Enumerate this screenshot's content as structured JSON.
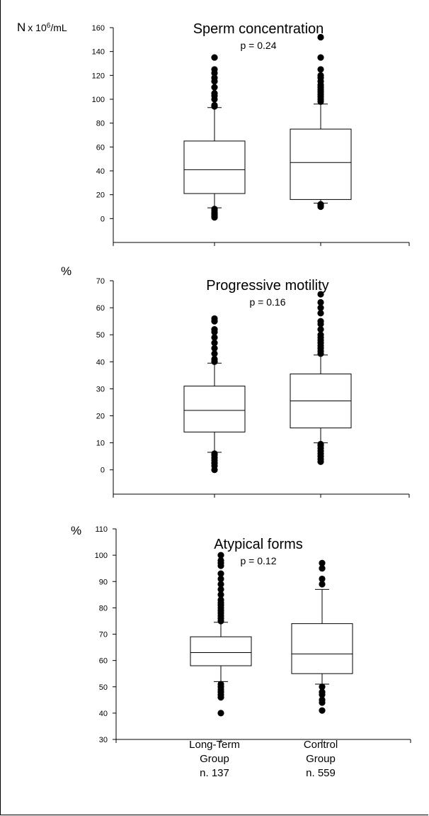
{
  "group_labels": [
    {
      "line1": "Long-Term",
      "line2": "Group",
      "line3": "n. 137"
    },
    {
      "line1": "Control",
      "line2": "Group",
      "line3": "n. 559"
    }
  ],
  "chart_data": [
    {
      "type": "box",
      "title": "Sperm concentration",
      "subtitle": "p = 0.24",
      "ylabel": {
        "main": "N",
        "rest": "x 10",
        "sup": "6",
        "tail": "/mL"
      },
      "ylim": [
        -20,
        160
      ],
      "yticks": [
        0,
        20,
        40,
        60,
        80,
        100,
        120,
        140,
        160
      ],
      "groups": [
        {
          "whisker_low": 9,
          "q1": 21,
          "median": 41,
          "q3": 65,
          "whisker_high": 93,
          "outliers": [
            1,
            2,
            3,
            4,
            5,
            7,
            8,
            94,
            95,
            100,
            103,
            105,
            110,
            115,
            118,
            122,
            125,
            135
          ]
        },
        {
          "whisker_low": 13,
          "q1": 16,
          "median": 47,
          "q3": 75,
          "whisker_high": 96,
          "outliers": [
            10,
            11,
            12,
            98,
            100,
            102,
            104,
            106,
            108,
            110,
            112,
            115,
            118,
            120,
            125,
            135,
            152
          ]
        }
      ]
    },
    {
      "type": "box",
      "title": "Progressive motility",
      "subtitle": "p = 0.16",
      "ylabel": {
        "main": "%"
      },
      "ylim": [
        -9,
        70
      ],
      "yticks": [
        0,
        10,
        20,
        30,
        40,
        50,
        60,
        70
      ],
      "groups": [
        {
          "whisker_low": 6.5,
          "q1": 14,
          "median": 22,
          "q3": 31,
          "whisker_high": 39.5,
          "outliers": [
            0,
            1.5,
            2.5,
            3.5,
            4.5,
            5.5,
            6,
            40,
            41,
            43,
            45,
            47,
            49,
            51,
            52,
            55,
            56
          ]
        },
        {
          "whisker_low": 10,
          "q1": 15.5,
          "median": 25.5,
          "q3": 35.5,
          "whisker_high": 42.5,
          "outliers": [
            3,
            4,
            5,
            6,
            7,
            8,
            9,
            9.5,
            43,
            44,
            45,
            46,
            47,
            48,
            49,
            50,
            52,
            54,
            55,
            58,
            60,
            62,
            65
          ]
        }
      ]
    },
    {
      "type": "box",
      "title": "Atypical forms",
      "subtitle": "p = 0.12",
      "ylabel": {
        "main": "%"
      },
      "ylim": [
        30,
        110
      ],
      "yticks": [
        30,
        40,
        50,
        60,
        70,
        80,
        90,
        100,
        110
      ],
      "groups": [
        {
          "whisker_low": 52,
          "q1": 58,
          "median": 63,
          "q3": 69,
          "whisker_high": 74.5,
          "outliers": [
            40,
            46,
            47,
            48,
            49,
            50,
            51,
            75,
            76,
            77,
            78,
            79,
            80,
            81,
            82,
            83,
            85,
            87,
            89,
            91,
            93,
            96,
            97,
            98,
            100
          ]
        },
        {
          "whisker_low": 51,
          "q1": 55,
          "median": 62.5,
          "q3": 74,
          "whisker_high": 87,
          "outliers": [
            41,
            44,
            45,
            47,
            48,
            50,
            89,
            91,
            95,
            97
          ]
        }
      ]
    }
  ]
}
